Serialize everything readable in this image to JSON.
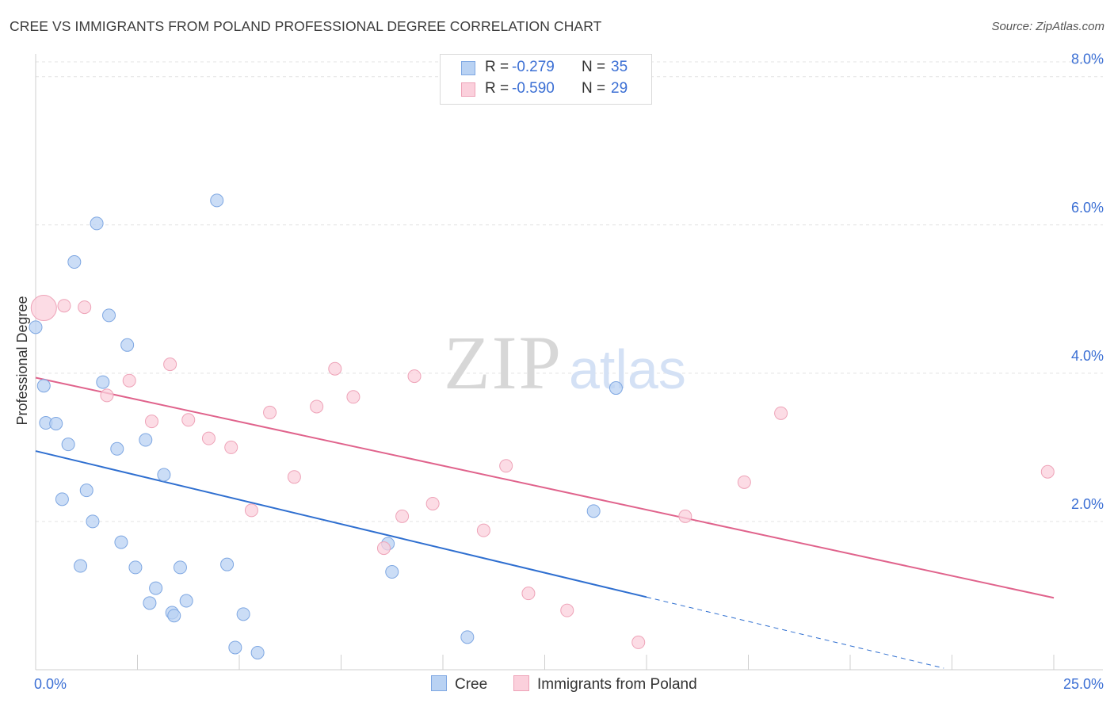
{
  "title": "CREE VS IMMIGRANTS FROM POLAND PROFESSIONAL DEGREE CORRELATION CHART",
  "source": "Source: ZipAtlas.com",
  "watermark": {
    "zip": "ZIP",
    "atlas": "atlas"
  },
  "colors": {
    "cree_fill": "#b9d2f3",
    "cree_stroke": "#7ea7e2",
    "cree_line": "#2f6fd0",
    "poland_fill": "#fbd0dc",
    "poland_stroke": "#eea3b8",
    "poland_line": "#e0638c",
    "tick_label": "#3b6fd4",
    "grid": "#e3e3e3"
  },
  "legend": {
    "rows": [
      {
        "r_label": "R =",
        "r_value": "-0.279",
        "n_label": "N =",
        "n_value": "35"
      },
      {
        "r_label": "R =",
        "r_value": "-0.590",
        "n_label": "N =",
        "n_value": "29"
      }
    ]
  },
  "bottom_legend": {
    "cree": "Cree",
    "poland": "Immigrants from Poland"
  },
  "chart_data": {
    "type": "scatter",
    "title": "CREE VS IMMIGRANTS FROM POLAND PROFESSIONAL DEGREE CORRELATION CHART",
    "xlabel": "",
    "ylabel": "Professional Degree",
    "xlim": [
      0,
      25
    ],
    "ylim": [
      0,
      8.2
    ],
    "x_tick_labels": {
      "left": "0.0%",
      "right": "25.0%"
    },
    "y_ticks": [
      {
        "value": 2,
        "label": "2.0%"
      },
      {
        "value": 4,
        "label": "4.0%"
      },
      {
        "value": 6,
        "label": "6.0%"
      },
      {
        "value": 8,
        "label": "8.0%"
      }
    ],
    "grid": true,
    "series": [
      {
        "name": "Cree",
        "r": -0.279,
        "n": 35,
        "points": [
          {
            "x": 0.0,
            "y": 4.62
          },
          {
            "x": 0.2,
            "y": 3.83
          },
          {
            "x": 0.25,
            "y": 3.33
          },
          {
            "x": 0.5,
            "y": 3.32
          },
          {
            "x": 0.65,
            "y": 2.3
          },
          {
            "x": 0.8,
            "y": 3.04
          },
          {
            "x": 0.95,
            "y": 5.5
          },
          {
            "x": 1.1,
            "y": 1.4
          },
          {
            "x": 1.25,
            "y": 2.42
          },
          {
            "x": 1.4,
            "y": 2.0
          },
          {
            "x": 1.5,
            "y": 6.02
          },
          {
            "x": 1.65,
            "y": 3.88
          },
          {
            "x": 1.8,
            "y": 4.78
          },
          {
            "x": 2.0,
            "y": 2.98
          },
          {
            "x": 2.1,
            "y": 1.72
          },
          {
            "x": 2.25,
            "y": 4.38
          },
          {
            "x": 2.45,
            "y": 1.38
          },
          {
            "x": 2.7,
            "y": 3.1
          },
          {
            "x": 2.8,
            "y": 0.9
          },
          {
            "x": 2.95,
            "y": 1.1
          },
          {
            "x": 3.15,
            "y": 2.63
          },
          {
            "x": 3.35,
            "y": 0.77
          },
          {
            "x": 3.4,
            "y": 0.73
          },
          {
            "x": 3.55,
            "y": 1.38
          },
          {
            "x": 3.7,
            "y": 0.93
          },
          {
            "x": 4.45,
            "y": 6.33
          },
          {
            "x": 4.7,
            "y": 1.42
          },
          {
            "x": 4.9,
            "y": 0.3
          },
          {
            "x": 5.1,
            "y": 0.75
          },
          {
            "x": 5.45,
            "y": 0.23
          },
          {
            "x": 8.65,
            "y": 1.7
          },
          {
            "x": 8.75,
            "y": 1.32
          },
          {
            "x": 10.6,
            "y": 0.44
          },
          {
            "x": 13.7,
            "y": 2.14
          },
          {
            "x": 14.25,
            "y": 3.8
          }
        ],
        "trend": {
          "x_start": 0,
          "y_start": 2.95,
          "x_end": 15.0,
          "y_end": 0.98,
          "dashed_to_x": 22.3
        }
      },
      {
        "name": "Immigrants from Poland",
        "r": -0.59,
        "n": 29,
        "points": [
          {
            "x": 0.2,
            "y": 4.88,
            "size": "large"
          },
          {
            "x": 0.7,
            "y": 4.91
          },
          {
            "x": 1.2,
            "y": 4.89
          },
          {
            "x": 1.75,
            "y": 3.7
          },
          {
            "x": 2.3,
            "y": 3.9
          },
          {
            "x": 2.85,
            "y": 3.35
          },
          {
            "x": 3.3,
            "y": 4.12
          },
          {
            "x": 3.75,
            "y": 3.37
          },
          {
            "x": 4.25,
            "y": 3.12
          },
          {
            "x": 4.8,
            "y": 3.0
          },
          {
            "x": 5.3,
            "y": 2.15
          },
          {
            "x": 5.75,
            "y": 3.47
          },
          {
            "x": 6.35,
            "y": 2.6
          },
          {
            "x": 6.9,
            "y": 3.55
          },
          {
            "x": 7.35,
            "y": 4.06
          },
          {
            "x": 7.8,
            "y": 3.68
          },
          {
            "x": 8.55,
            "y": 1.64
          },
          {
            "x": 9.0,
            "y": 2.07
          },
          {
            "x": 9.3,
            "y": 3.96
          },
          {
            "x": 9.75,
            "y": 2.24
          },
          {
            "x": 11.0,
            "y": 1.88
          },
          {
            "x": 11.55,
            "y": 2.75
          },
          {
            "x": 12.1,
            "y": 1.03
          },
          {
            "x": 13.05,
            "y": 0.8
          },
          {
            "x": 14.8,
            "y": 0.37
          },
          {
            "x": 15.95,
            "y": 2.07
          },
          {
            "x": 17.4,
            "y": 2.53
          },
          {
            "x": 18.3,
            "y": 3.46
          },
          {
            "x": 24.85,
            "y": 2.67
          }
        ],
        "trend": {
          "x_start": 0,
          "y_start": 3.94,
          "x_end": 25.0,
          "y_end": 0.97
        }
      }
    ]
  }
}
